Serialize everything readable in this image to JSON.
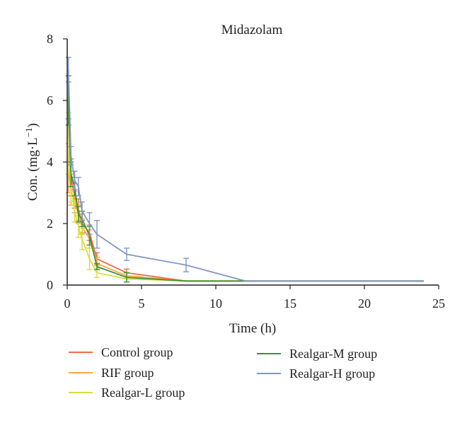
{
  "chart_data": {
    "type": "line",
    "title": "Midazolam",
    "xlabel": "Time (h)",
    "ylabel": "Con. (mg·L",
    "ylabel_sup": "−1",
    "ylabel_close": ")",
    "xlim": [
      0,
      25
    ],
    "ylim": [
      0,
      8
    ],
    "xticks": [
      0,
      5,
      10,
      15,
      20,
      25
    ],
    "yticks": [
      0,
      2,
      4,
      6,
      8
    ],
    "grid": false,
    "legend_position": "bottom",
    "series": [
      {
        "name": "Control group",
        "color": "#f26b4a",
        "x": [
          0.083,
          0.25,
          0.5,
          0.75,
          1,
          1.5,
          2,
          4,
          8,
          12,
          24
        ],
        "y": [
          4.5,
          3.5,
          2.9,
          2.45,
          2.0,
          1.7,
          0.85,
          0.4,
          0.13,
          0.13,
          0.13
        ],
        "err": [
          0.9,
          0.6,
          0.4,
          0.35,
          0.3,
          0.25,
          0.2,
          0.12,
          0,
          0,
          0
        ]
      },
      {
        "name": "RIF group",
        "color": "#f9a83c",
        "x": [
          0.083,
          0.25,
          0.5,
          0.75,
          1,
          1.5,
          2,
          4,
          8,
          12,
          24
        ],
        "y": [
          3.8,
          3.1,
          2.7,
          2.3,
          1.9,
          1.5,
          0.7,
          0.3,
          0.13,
          0.13,
          0.13
        ],
        "err": [
          0.8,
          0.5,
          0.35,
          0.3,
          0.25,
          0.3,
          0.2,
          0.1,
          0,
          0,
          0
        ]
      },
      {
        "name": "Realgar-L group",
        "color": "#d9de3a",
        "x": [
          0.083,
          0.25,
          0.5,
          0.75,
          1,
          1.5,
          2,
          4,
          8,
          12,
          24
        ],
        "y": [
          4.6,
          3.2,
          2.4,
          1.9,
          1.5,
          0.85,
          0.4,
          0.2,
          0.13,
          0.13,
          0.13
        ],
        "err": [
          1.0,
          0.5,
          0.35,
          0.35,
          0.35,
          0.35,
          0.15,
          0.1,
          0,
          0,
          0
        ]
      },
      {
        "name": "Realgar-M group",
        "color": "#3f8f3e",
        "x": [
          0.083,
          0.25,
          0.5,
          0.75,
          1,
          1.5,
          2,
          4,
          8,
          12,
          24
        ],
        "y": [
          6.0,
          3.6,
          3.2,
          2.3,
          2.15,
          1.6,
          0.6,
          0.25,
          0.13,
          0.13,
          0.13
        ],
        "err": [
          0.8,
          0.4,
          0.3,
          0.25,
          0.25,
          0.3,
          0.1,
          0.15,
          0,
          0,
          0
        ]
      },
      {
        "name": "Realgar-H group",
        "color": "#8196c8",
        "x": [
          0.083,
          0.25,
          0.5,
          0.75,
          1,
          1.5,
          2,
          4,
          8,
          12,
          24
        ],
        "y": [
          7.0,
          4.2,
          3.4,
          3.2,
          2.4,
          2.0,
          1.65,
          1.0,
          0.65,
          0.13,
          0.13
        ],
        "err": [
          0.4,
          0.3,
          0.3,
          0.3,
          0.3,
          0.35,
          0.45,
          0.2,
          0.22,
          0,
          0
        ]
      }
    ]
  }
}
